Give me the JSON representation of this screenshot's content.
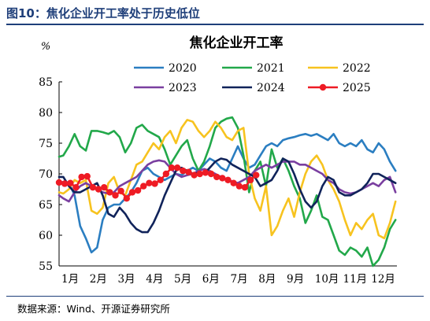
{
  "figure_title": "图10：焦化企业开工率处于历史低位",
  "source": "数据来源：Wind、开源证券研究所",
  "chart_data": {
    "type": "line",
    "title": "焦化企业开工率",
    "ylabel": "%",
    "xlabel": "",
    "ylim": [
      55,
      85
    ],
    "yticks": [
      55,
      60,
      65,
      70,
      75,
      80,
      85
    ],
    "xlim": [
      0,
      12
    ],
    "categories": [
      "1月",
      "2月",
      "3月",
      "4月",
      "5月",
      "6月",
      "7月",
      "8月",
      "9月",
      "10月",
      "11月",
      "12月"
    ],
    "legend_position": "top",
    "grid": false,
    "series": [
      {
        "name": "2020",
        "color": "#2b7ec1",
        "marker": false,
        "x": [
          0.0,
          0.15,
          0.35,
          0.55,
          0.75,
          0.95,
          1.15,
          1.35,
          1.55,
          1.75,
          1.95,
          2.15,
          2.35,
          2.55,
          2.75,
          2.95,
          3.15,
          3.35,
          3.55,
          3.75,
          3.95,
          4.15,
          4.35,
          4.55,
          4.75,
          4.95,
          5.15,
          5.35,
          5.55,
          5.75,
          5.95,
          6.15,
          6.35,
          6.55,
          6.75,
          6.95,
          7.15,
          7.35,
          7.55,
          7.75,
          7.95,
          8.15,
          8.35,
          8.55,
          8.75,
          8.95,
          9.15,
          9.35,
          9.55,
          9.75,
          9.95,
          10.15,
          10.35,
          10.55,
          10.75,
          10.95,
          11.15,
          11.35,
          11.55,
          11.75,
          11.95
        ],
        "values": [
          68.5,
          68.7,
          68.6,
          66.5,
          61.5,
          59.5,
          57.2,
          58.0,
          62.5,
          64.5,
          65.0,
          65.0,
          66.0,
          67.0,
          68.5,
          70.5,
          71.0,
          70.0,
          69.5,
          69.0,
          69.5,
          70.0,
          69.8,
          70.5,
          71.0,
          70.5,
          71.5,
          72.5,
          72.0,
          71.0,
          70.5,
          72.5,
          74.5,
          72.5,
          71.0,
          71.5,
          73.0,
          74.5,
          75.0,
          74.5,
          75.5,
          75.8,
          76.0,
          76.3,
          76.5,
          76.2,
          76.5,
          76.0,
          75.5,
          76.5,
          75.0,
          74.5,
          75.0,
          74.5,
          75.5,
          74.0,
          73.5,
          75.0,
          74.0,
          72.0,
          70.5
        ]
      },
      {
        "name": "2021",
        "color": "#22a84a",
        "marker": false,
        "x": [
          0.0,
          0.15,
          0.35,
          0.55,
          0.75,
          0.95,
          1.15,
          1.35,
          1.55,
          1.75,
          1.95,
          2.15,
          2.35,
          2.55,
          2.75,
          2.95,
          3.15,
          3.35,
          3.55,
          3.75,
          3.95,
          4.15,
          4.35,
          4.55,
          4.75,
          4.95,
          5.15,
          5.35,
          5.55,
          5.75,
          5.95,
          6.15,
          6.35,
          6.55,
          6.75,
          6.95,
          7.15,
          7.35,
          7.55,
          7.75,
          7.95,
          8.15,
          8.35,
          8.55,
          8.75,
          8.95,
          9.15,
          9.35,
          9.55,
          9.75,
          9.95,
          10.15,
          10.35,
          10.55,
          10.75,
          10.95,
          11.15,
          11.35,
          11.55,
          11.75,
          11.95
        ],
        "values": [
          72.8,
          73.0,
          74.5,
          76.5,
          74.5,
          73.8,
          77.0,
          77.0,
          76.8,
          76.5,
          77.0,
          76.0,
          73.5,
          75.0,
          77.5,
          78.0,
          77.0,
          76.5,
          76.0,
          74.0,
          71.5,
          73.0,
          74.5,
          75.5,
          72.5,
          70.5,
          72.0,
          74.5,
          77.5,
          78.5,
          79.0,
          79.2,
          77.5,
          73.0,
          67.0,
          70.5,
          72.0,
          68.0,
          74.0,
          71.0,
          72.5,
          70.5,
          68.0,
          66.0,
          62.0,
          64.0,
          66.5,
          63.0,
          62.5,
          60.0,
          57.5,
          56.8,
          58.0,
          57.5,
          56.5,
          58.0,
          55.0,
          56.0,
          58.0,
          61.0,
          62.5
        ]
      },
      {
        "name": "2022",
        "color": "#f7c31f",
        "marker": false,
        "x": [
          0.0,
          0.15,
          0.35,
          0.55,
          0.75,
          0.95,
          1.15,
          1.35,
          1.55,
          1.75,
          1.95,
          2.15,
          2.35,
          2.55,
          2.75,
          2.95,
          3.15,
          3.35,
          3.55,
          3.75,
          3.95,
          4.15,
          4.35,
          4.55,
          4.75,
          4.95,
          5.15,
          5.35,
          5.55,
          5.75,
          5.95,
          6.15,
          6.35,
          6.55,
          6.75,
          6.95,
          7.15,
          7.35,
          7.55,
          7.75,
          7.95,
          8.15,
          8.35,
          8.55,
          8.75,
          8.95,
          9.15,
          9.35,
          9.55,
          9.75,
          9.95,
          10.15,
          10.35,
          10.55,
          10.75,
          10.95,
          11.15,
          11.35,
          11.55,
          11.75,
          11.95
        ],
        "values": [
          67.0,
          66.8,
          67.5,
          69.0,
          68.5,
          69.0,
          64.0,
          63.5,
          64.5,
          68.5,
          69.5,
          67.0,
          66.5,
          69.0,
          71.5,
          72.0,
          73.5,
          75.0,
          74.0,
          76.0,
          77.0,
          75.0,
          77.5,
          78.8,
          78.5,
          77.0,
          76.0,
          77.0,
          78.5,
          77.5,
          76.0,
          75.5,
          77.0,
          77.5,
          70.0,
          66.0,
          64.0,
          68.0,
          60.0,
          61.5,
          64.0,
          66.0,
          63.0,
          67.0,
          70.0,
          72.0,
          73.0,
          71.5,
          69.0,
          67.5,
          65.5,
          62.5,
          60.0,
          62.0,
          61.0,
          62.5,
          63.5,
          60.0,
          59.5,
          62.0,
          65.5
        ]
      },
      {
        "name": "2023",
        "color": "#7a3fa0",
        "marker": false,
        "x": [
          0.0,
          0.15,
          0.35,
          0.55,
          0.75,
          0.95,
          1.15,
          1.35,
          1.55,
          1.75,
          1.95,
          2.15,
          2.35,
          2.55,
          2.75,
          2.95,
          3.15,
          3.35,
          3.55,
          3.75,
          3.95,
          4.15,
          4.35,
          4.55,
          4.75,
          4.95,
          5.15,
          5.35,
          5.55,
          5.75,
          5.95,
          6.15,
          6.35,
          6.55,
          6.75,
          6.95,
          7.15,
          7.35,
          7.55,
          7.75,
          7.95,
          8.15,
          8.35,
          8.55,
          8.75,
          8.95,
          9.15,
          9.35,
          9.55,
          9.75,
          9.95,
          10.15,
          10.35,
          10.55,
          10.75,
          10.95,
          11.15,
          11.35,
          11.55,
          11.75,
          11.95
        ],
        "values": [
          66.5,
          66.0,
          65.5,
          67.0,
          68.0,
          68.5,
          68.0,
          67.5,
          67.0,
          66.8,
          67.0,
          68.0,
          68.5,
          69.0,
          69.5,
          70.5,
          71.5,
          72.0,
          72.2,
          72.0,
          71.0,
          70.0,
          69.5,
          69.8,
          70.0,
          70.5,
          70.8,
          70.5,
          70.0,
          69.5,
          69.0,
          68.8,
          68.5,
          69.0,
          69.5,
          70.5,
          71.0,
          71.5,
          71.0,
          71.5,
          72.0,
          72.0,
          72.0,
          71.5,
          71.5,
          71.0,
          70.5,
          70.0,
          69.0,
          68.5,
          67.5,
          67.0,
          66.8,
          67.0,
          67.5,
          68.0,
          68.5,
          68.0,
          69.0,
          69.5,
          67.0
        ]
      },
      {
        "name": "2024",
        "color": "#10235a",
        "marker": false,
        "x": [
          0.0,
          0.15,
          0.35,
          0.55,
          0.75,
          0.95,
          1.15,
          1.35,
          1.55,
          1.75,
          1.95,
          2.15,
          2.35,
          2.55,
          2.75,
          2.95,
          3.15,
          3.35,
          3.55,
          3.75,
          3.95,
          4.15,
          4.35,
          4.55,
          4.75,
          4.95,
          5.15,
          5.35,
          5.55,
          5.75,
          5.95,
          6.15,
          6.35,
          6.55,
          6.75,
          6.95,
          7.15,
          7.35,
          7.55,
          7.75,
          7.95,
          8.15,
          8.35,
          8.55,
          8.75,
          8.95,
          9.15,
          9.35,
          9.55,
          9.75,
          9.95,
          10.15,
          10.35,
          10.55,
          10.75,
          10.95,
          11.15,
          11.35,
          11.55,
          11.75,
          11.95
        ],
        "values": [
          69.5,
          69.5,
          68.0,
          67.0,
          67.0,
          67.5,
          68.0,
          68.5,
          66.5,
          63.5,
          63.0,
          64.5,
          63.5,
          62.0,
          61.0,
          60.5,
          60.5,
          62.0,
          64.0,
          66.5,
          68.5,
          70.5,
          71.0,
          70.5,
          70.0,
          70.2,
          70.0,
          71.0,
          72.0,
          72.5,
          72.3,
          71.5,
          71.0,
          70.5,
          70.0,
          69.5,
          68.0,
          68.5,
          69.0,
          70.5,
          72.5,
          72.0,
          70.0,
          67.5,
          65.5,
          64.5,
          65.5,
          68.0,
          69.5,
          69.0,
          67.0,
          66.5,
          66.5,
          67.0,
          67.5,
          68.5,
          70.0,
          70.0,
          69.5,
          69.0,
          68.5
        ]
      },
      {
        "name": "2025",
        "color": "#ee1b24",
        "marker": true,
        "x": [
          0.0,
          0.2,
          0.4,
          0.6,
          0.8,
          1.0,
          1.2,
          1.4,
          1.6,
          1.8,
          2.0,
          2.2,
          2.4,
          2.6,
          2.8,
          3.0,
          3.2,
          3.4,
          3.6,
          3.8,
          4.0,
          4.2,
          4.4,
          4.6,
          4.8,
          5.0,
          5.2,
          5.4,
          5.6,
          5.8,
          6.0,
          6.2,
          6.4,
          6.6,
          6.8,
          7.0
        ],
        "values": [
          68.6,
          68.4,
          68.5,
          67.8,
          69.5,
          69.6,
          67.8,
          67.5,
          67.8,
          67.0,
          66.5,
          67.2,
          66.0,
          67.0,
          67.3,
          68.0,
          68.5,
          68.4,
          69.0,
          70.0,
          71.0,
          71.0,
          70.5,
          70.3,
          69.8,
          70.0,
          70.2,
          70.0,
          69.5,
          69.3,
          69.0,
          68.5,
          68.0,
          67.8,
          69.0,
          69.8
        ]
      }
    ]
  }
}
